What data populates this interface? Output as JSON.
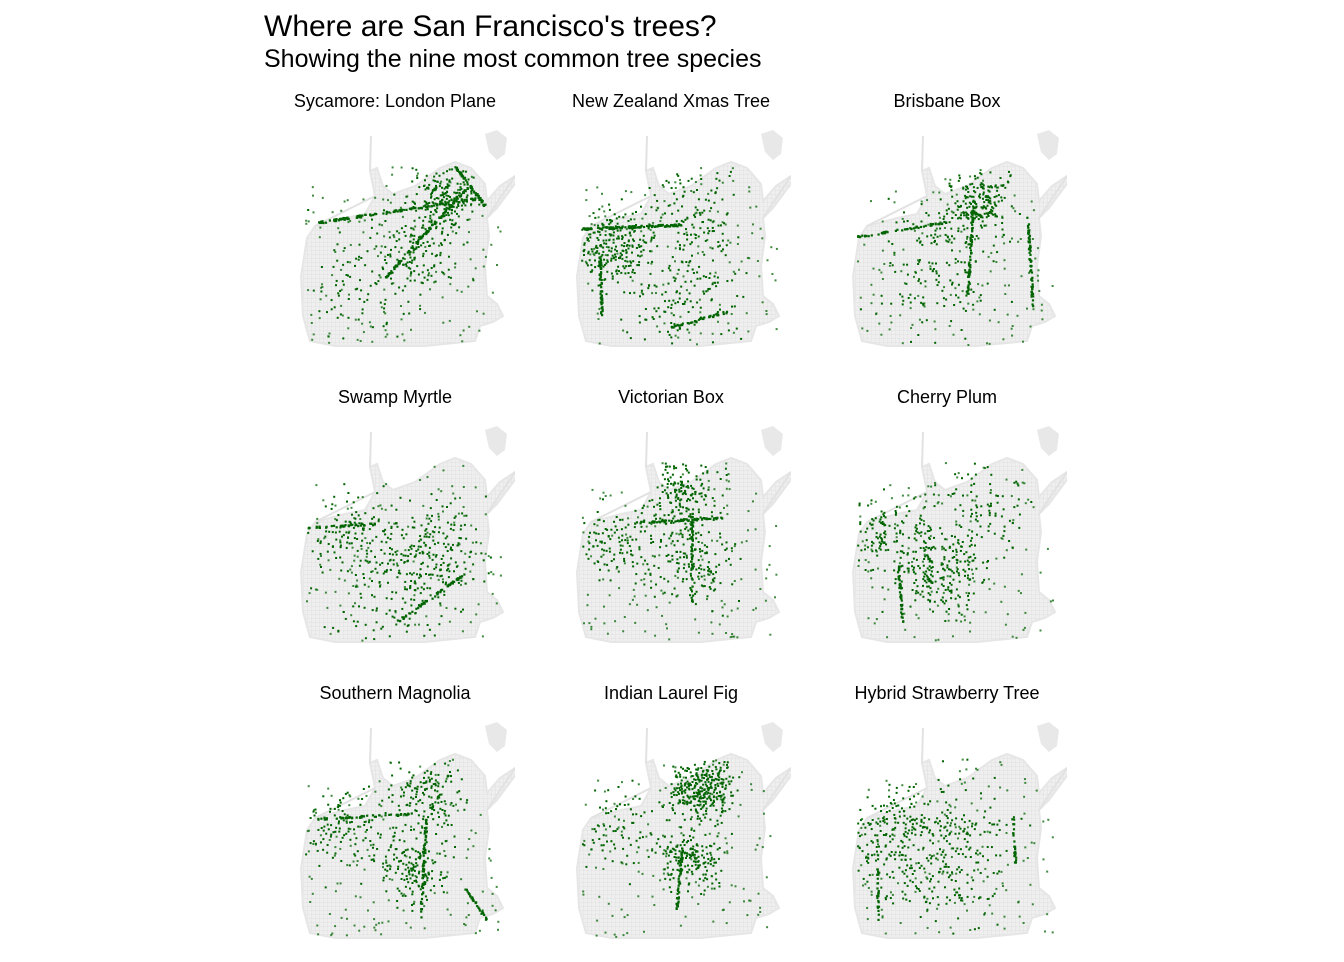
{
  "title": "Where are San Francisco's trees?",
  "subtitle": "Showing the nine most common tree species",
  "colors": {
    "points": "#006400",
    "streets": "#e6e6e6",
    "background": "#ffffff"
  },
  "chart_data": {
    "type": "scatter",
    "title": "Where are San Francisco's trees?",
    "subtitle": "Showing the nine most common tree species",
    "layout": "facet_wrap 3x3 map of San Francisco street network (light gray) with tree locations (dark green points)",
    "xlabel": "",
    "ylabel": "",
    "grid": false,
    "legend": "none",
    "facets": [
      {
        "label": "Sycamore: London Plane",
        "pattern": "dense NE (Financial District/Embarcadero), strong diagonal along Market St, east-west line along Geary/Fell, scattered elsewhere"
      },
      {
        "label": "New Zealand Xmas Tree",
        "pattern": "dense in west (Richmond & Sunset), long east-west line north of Golden Gate Park, north-south line in Sunset, scattered south"
      },
      {
        "label": "Brisbane Box",
        "pattern": "dense center-north (Western Addition/Pacific Heights), north-south lines along Valencia/Dolores and east side, sparse west"
      },
      {
        "label": "Swamp Myrtle",
        "pattern": "scattered citywide, concentrations in Mission & along diagonals in southeast, west Richmond rows"
      },
      {
        "label": "Victorian Box",
        "pattern": "dense northern neighborhoods (Marina/Pac Heights), center-east Mission & Noe, scattered Richmond"
      },
      {
        "label": "Cherry Plum",
        "pattern": "concentrated center (Twin Peaks ring, Noe, Bernal), Richmond, sparse NE"
      },
      {
        "label": "Southern Magnolia",
        "pattern": "north-central & Mission corridor, Richmond east-west rows, southeast diagonals"
      },
      {
        "label": "Indian Laurel Fig",
        "pattern": "very dense NE (North Beach/Nob Hill/Downtown), Mission corridor, sparse west"
      },
      {
        "label": "Hybrid Strawberry Tree",
        "pattern": "evenly scattered citywide, Richmond & Sunset blocks, south neighborhoods"
      }
    ]
  }
}
